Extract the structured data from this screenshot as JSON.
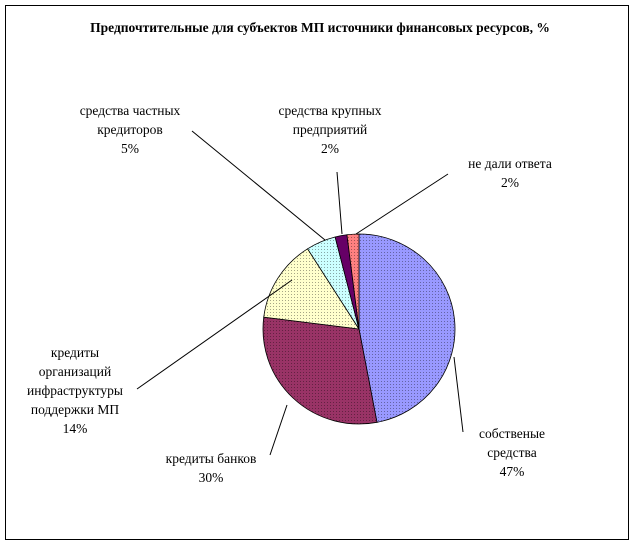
{
  "chart_data": {
    "type": "pie",
    "title": "Предпочтительные для субъектов МП источники финансовых ресурсов, %",
    "slices": [
      {
        "name": "собственые средства",
        "label_lines": [
          "собственые",
          "средства"
        ],
        "value": 47,
        "display": "47%",
        "color": "#9999ff"
      },
      {
        "name": "кредиты банков",
        "label_lines": [
          "кредиты банков"
        ],
        "value": 30,
        "display": "30%",
        "color": "#993366"
      },
      {
        "name": "кредиты организаций инфраструктуры поддержки МП",
        "label_lines": [
          "кредиты",
          "организаций",
          "инфраструктуры",
          "поддержки МП"
        ],
        "value": 14,
        "display": "14%",
        "color": "#ffffcc"
      },
      {
        "name": "средства частных кредиторов",
        "label_lines": [
          "средства частных",
          "кредиторов"
        ],
        "value": 5,
        "display": "5%",
        "color": "#ccffff"
      },
      {
        "name": "средства крупных предприятий",
        "label_lines": [
          "средства крупных",
          "предприятий"
        ],
        "value": 2,
        "display": "2%",
        "color": "#660066"
      },
      {
        "name": "не дали ответа",
        "label_lines": [
          "не дали ответа"
        ],
        "value": 2,
        "display": "2%",
        "color": "#ff8080"
      }
    ]
  }
}
